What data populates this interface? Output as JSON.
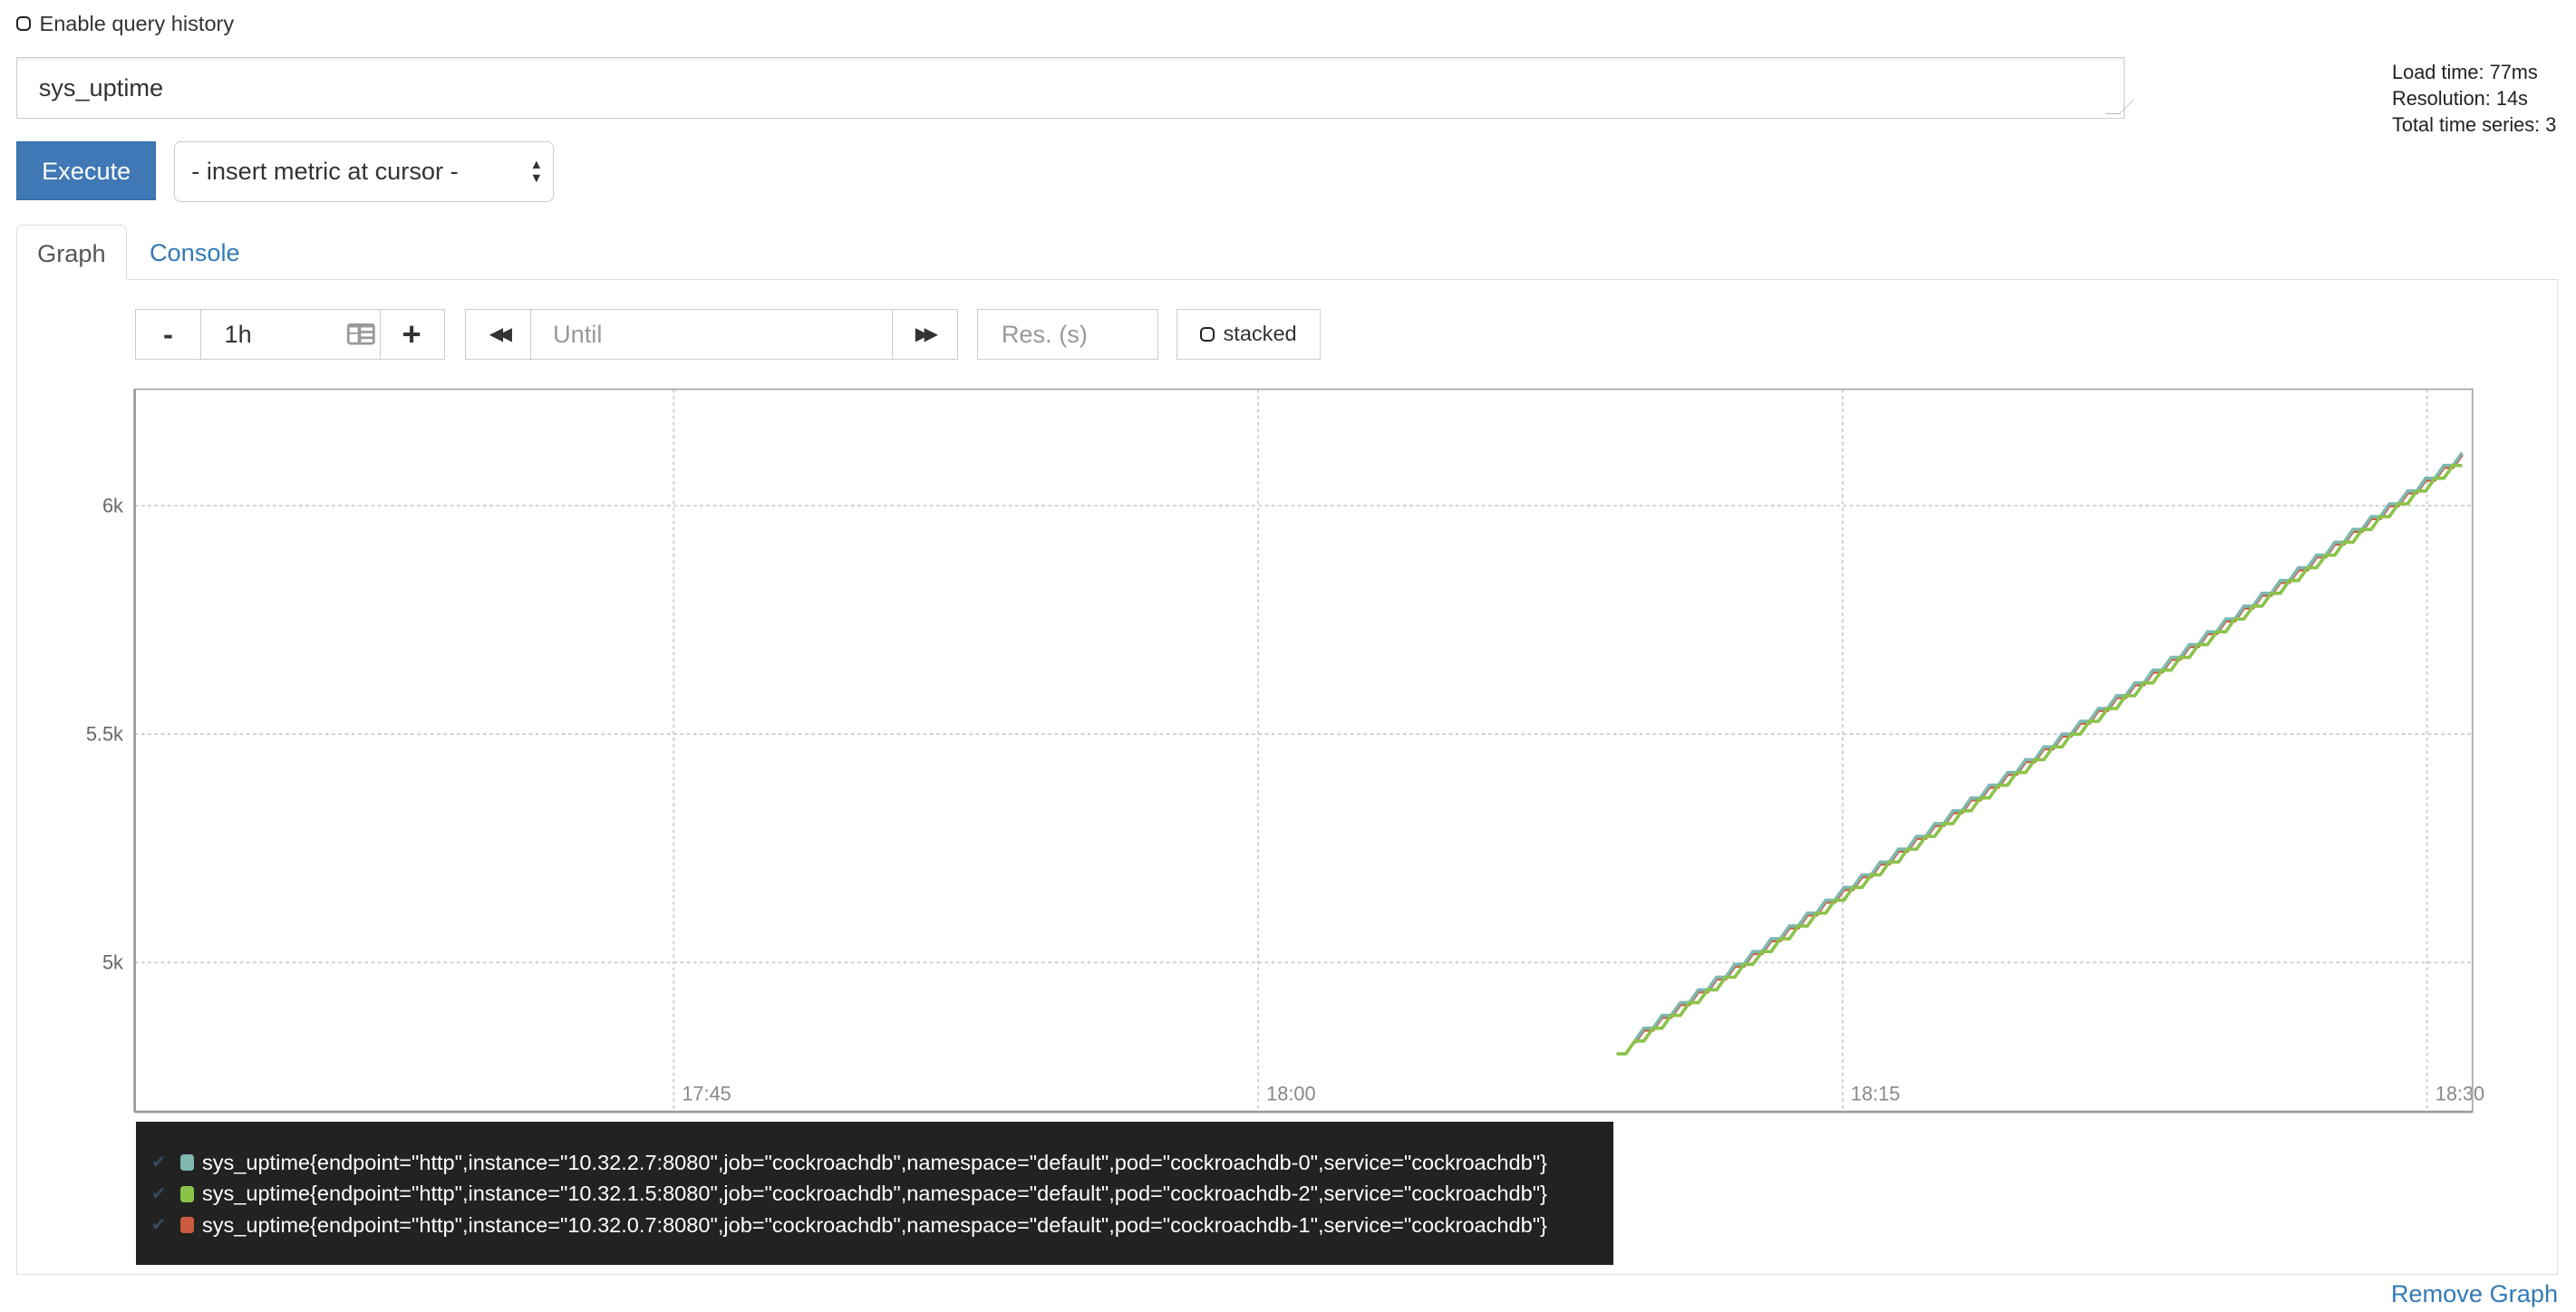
{
  "query_history": {
    "label": "Enable query history",
    "checked": false
  },
  "info": {
    "load_time": "Load time: 77ms",
    "resolution": "Resolution: 14s",
    "total_series": "Total time series: 3"
  },
  "expression": {
    "value": "sys_uptime"
  },
  "execute_label": "Execute",
  "metric_select": {
    "selected": "- insert metric at cursor -"
  },
  "tabs": [
    {
      "label": "Graph",
      "active": true
    },
    {
      "label": "Console",
      "active": false
    }
  ],
  "controls": {
    "minus": "-",
    "range": "1h",
    "plus": "+",
    "back_icon": "double-chevron-left",
    "until_placeholder": "Until",
    "forward_icon": "double-chevron-right",
    "res_placeholder": "Res. (s)",
    "stacked_label": "stacked",
    "stacked": false
  },
  "chart_data": {
    "type": "line",
    "xlim": [
      "17:31:10",
      "18:31:10"
    ],
    "ylim": [
      4673,
      6255
    ],
    "x_ticks": [
      "17:45",
      "18:00",
      "18:15",
      "18:30"
    ],
    "y_ticks": [
      {
        "value": 5000,
        "label": "5k"
      },
      {
        "value": 5500,
        "label": "5.5k"
      },
      {
        "value": 6000,
        "label": "6k"
      }
    ],
    "grid": true,
    "x_start": "18:09:12",
    "step_seconds": 14,
    "series": [
      {
        "name": "sys_uptime{endpoint=\"http\",instance=\"10.32.2.7:8080\",job=\"cockroachdb\",namespace=\"default\",pod=\"cockroachdb-0\",service=\"cockroachdb\"}",
        "color": "#7eb8b0",
        "values": [
          null,
          null,
          4828,
          4856,
          4856,
          4884,
          4884,
          4912,
          4912,
          4940,
          4940,
          4968,
          4968,
          4996,
          4996,
          5024,
          5024,
          5052,
          5052,
          5080,
          5080,
          5108,
          5108,
          5136,
          5136,
          5164,
          5164,
          5192,
          5192,
          5220,
          5220,
          5248,
          5248,
          5276,
          5276,
          5304,
          5304,
          5332,
          5332,
          5360,
          5360,
          5388,
          5388,
          5416,
          5416,
          5444,
          5444,
          5472,
          5472,
          5500,
          5500,
          5528,
          5528,
          5556,
          5556,
          5584,
          5584,
          5612,
          5612,
          5640,
          5640,
          5668,
          5668,
          5696,
          5696,
          5724,
          5724,
          5752,
          5752,
          5780,
          5780,
          5808,
          5808,
          5836,
          5836,
          5864,
          5864,
          5892,
          5892,
          5920,
          5920,
          5948,
          5948,
          5976,
          5976,
          6004,
          6004,
          6032,
          6032,
          6060,
          6060,
          6088,
          6088,
          6116
        ]
      },
      {
        "name": "sys_uptime{endpoint=\"http\",instance=\"10.32.1.5:8080\",job=\"cockroachdb\",namespace=\"default\",pod=\"cockroachdb-2\",service=\"cockroachdb\"}",
        "color": "#8bc34a",
        "values": [
          4800,
          4800,
          4828,
          4828,
          4856,
          4856,
          4884,
          4884,
          4912,
          4912,
          4940,
          4940,
          4968,
          4968,
          4996,
          4996,
          5024,
          5024,
          5052,
          5052,
          5080,
          5080,
          5108,
          5108,
          5136,
          5136,
          5164,
          5164,
          5192,
          5192,
          5220,
          5220,
          5248,
          5248,
          5276,
          5276,
          5304,
          5304,
          5332,
          5332,
          5360,
          5360,
          5388,
          5388,
          5416,
          5416,
          5444,
          5444,
          5472,
          5472,
          5500,
          5500,
          5528,
          5528,
          5556,
          5556,
          5584,
          5584,
          5612,
          5612,
          5640,
          5640,
          5668,
          5668,
          5696,
          5696,
          5724,
          5724,
          5752,
          5752,
          5780,
          5780,
          5808,
          5808,
          5836,
          5836,
          5864,
          5864,
          5892,
          5892,
          5920,
          5920,
          5948,
          5948,
          5976,
          5976,
          6004,
          6004,
          6032,
          6032,
          6060,
          6060,
          6088,
          6088
        ]
      },
      {
        "name": "sys_uptime{endpoint=\"http\",instance=\"10.32.0.7:8080\",job=\"cockroachdb\",namespace=\"default\",pod=\"cockroachdb-1\",service=\"cockroachdb\"}",
        "color": "#cc5a3f",
        "values": [
          null,
          null,
          4824,
          4852,
          4852,
          4880,
          4880,
          4908,
          4908,
          4936,
          4936,
          4964,
          4964,
          4992,
          4992,
          5020,
          5020,
          5048,
          5048,
          5076,
          5076,
          5104,
          5104,
          5132,
          5132,
          5160,
          5160,
          5188,
          5188,
          5216,
          5216,
          5244,
          5244,
          5272,
          5272,
          5300,
          5300,
          5328,
          5328,
          5356,
          5356,
          5384,
          5384,
          5412,
          5412,
          5440,
          5440,
          5468,
          5468,
          5496,
          5496,
          5524,
          5524,
          5552,
          5552,
          5580,
          5580,
          5608,
          5608,
          5636,
          5636,
          5664,
          5664,
          5692,
          5692,
          5720,
          5720,
          5748,
          5748,
          5776,
          5776,
          5804,
          5804,
          5832,
          5832,
          5860,
          5860,
          5888,
          5888,
          5916,
          5916,
          5944,
          5944,
          5972,
          5972,
          6000,
          6000,
          6028,
          6028,
          6056,
          6056,
          6084,
          6084,
          6112
        ]
      }
    ]
  },
  "legend_check": "✔",
  "remove_graph": "Remove Graph"
}
